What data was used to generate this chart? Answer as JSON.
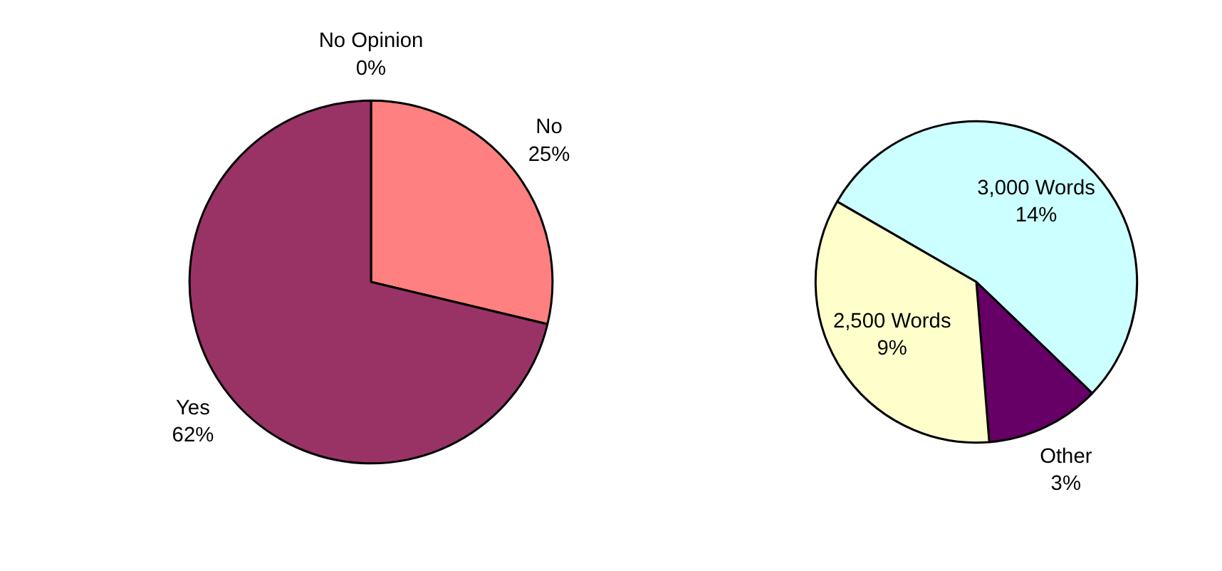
{
  "chart_data": [
    {
      "type": "pie",
      "categories": [
        "No Opinion",
        "No",
        "Yes"
      ],
      "values": [
        0,
        25,
        62
      ],
      "value_labels": [
        "0%",
        "25%",
        "62%"
      ],
      "colors": [
        "#ffffcc",
        "#ff8080",
        "#993366"
      ]
    },
    {
      "type": "pie",
      "categories": [
        "3,000 Words",
        "Other",
        "2,500 Words"
      ],
      "values": [
        14,
        3,
        9
      ],
      "value_labels": [
        "14%",
        "3%",
        "9%"
      ],
      "colors": [
        "#ccffff",
        "#660066",
        "#ffffcc"
      ]
    }
  ]
}
